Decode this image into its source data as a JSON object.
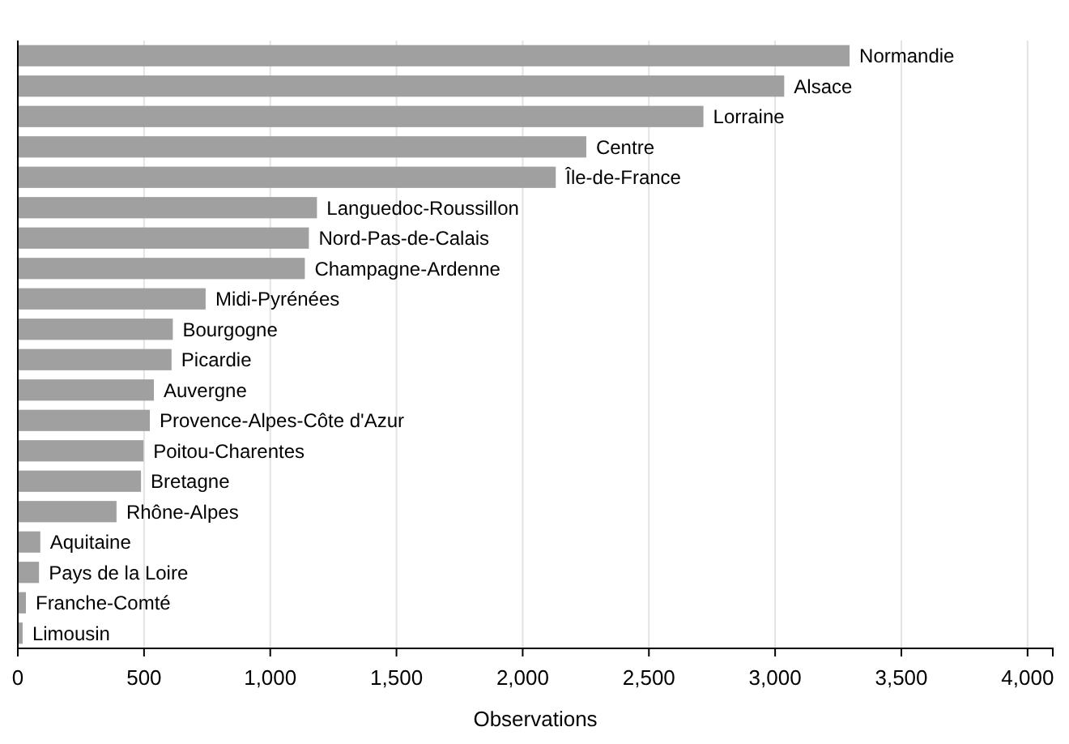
{
  "chart_data": {
    "type": "bar",
    "orientation": "horizontal",
    "xlabel": "Observations",
    "categories": [
      "Normandie",
      "Alsace",
      "Lorraine",
      "Centre",
      "Île-de-France",
      "Languedoc-Roussillon",
      "Nord-Pas-de-Calais",
      "Champagne-Ardenne",
      "Midi-Pyrénées",
      "Bourgogne",
      "Picardie",
      "Auvergne",
      "Provence-Alpes-Côte d'Azur",
      "Poitou-Charentes",
      "Bretagne",
      "Rhône-Alpes",
      "Aquitaine",
      "Pays de la Loire",
      "Franche-Comté",
      "Limousin"
    ],
    "values": [
      3295,
      3036,
      2716,
      2252,
      2131,
      1185,
      1153,
      1137,
      744,
      614,
      609,
      539,
      523,
      498,
      488,
      391,
      89,
      84,
      32,
      19
    ],
    "color": "#a0a0a0",
    "xlim": [
      0,
      4100
    ],
    "xticks": [
      0,
      {
        "value": 500,
        "label": "500"
      },
      {
        "value": 1000,
        "label": "1,000"
      },
      {
        "value": 1500,
        "label": "1,500"
      },
      {
        "value": 2000,
        "label": "2,000"
      },
      {
        "value": 2500,
        "label": "2,500"
      },
      {
        "value": 3000,
        "label": "3,000"
      },
      {
        "value": 3500,
        "label": "3,500"
      },
      {
        "value": 4000,
        "label": "4,000"
      }
    ],
    "grid": "x"
  }
}
